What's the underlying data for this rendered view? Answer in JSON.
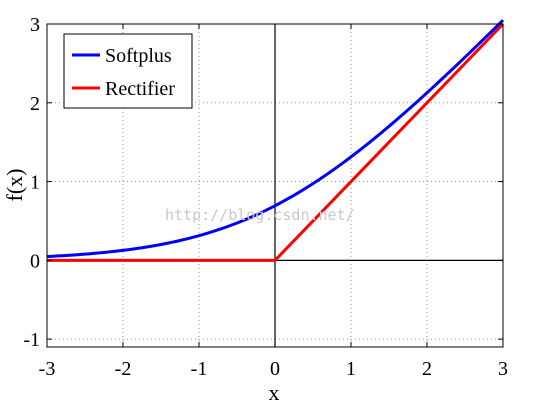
{
  "chart_data": {
    "type": "line",
    "xlabel": "x",
    "ylabel": "f(x)",
    "xlim": [
      -3,
      3
    ],
    "ylim": [
      -1.1,
      3
    ],
    "xticks": [
      -3,
      -2,
      -1,
      0,
      1,
      2,
      3
    ],
    "yticks": [
      -1,
      0,
      1,
      2,
      3
    ],
    "xtick_labels": [
      "-3",
      "-2",
      "-1",
      "0",
      "1",
      "2",
      "3"
    ],
    "ytick_labels": [
      "-1",
      "0",
      "1",
      "2",
      "3"
    ],
    "grid": true,
    "grid_style": "dotted",
    "reference_lines": {
      "x": 0,
      "y": 0
    },
    "legend_position": "top-left",
    "series": [
      {
        "name": "Softplus",
        "color": "#0000ff",
        "x": [
          -3,
          -2.5,
          -2,
          -1.5,
          -1,
          -0.5,
          0,
          0.5,
          1,
          1.5,
          2,
          2.5,
          3
        ],
        "y": [
          0.049,
          0.079,
          0.127,
          0.201,
          0.313,
          0.474,
          0.693,
          0.974,
          1.313,
          1.701,
          2.127,
          2.579,
          3.049
        ]
      },
      {
        "name": "Rectifier",
        "color": "#ff0000",
        "x": [
          -3,
          0,
          3
        ],
        "y": [
          0,
          0,
          3
        ]
      }
    ]
  },
  "watermark": "http://blog.csdn.net/"
}
